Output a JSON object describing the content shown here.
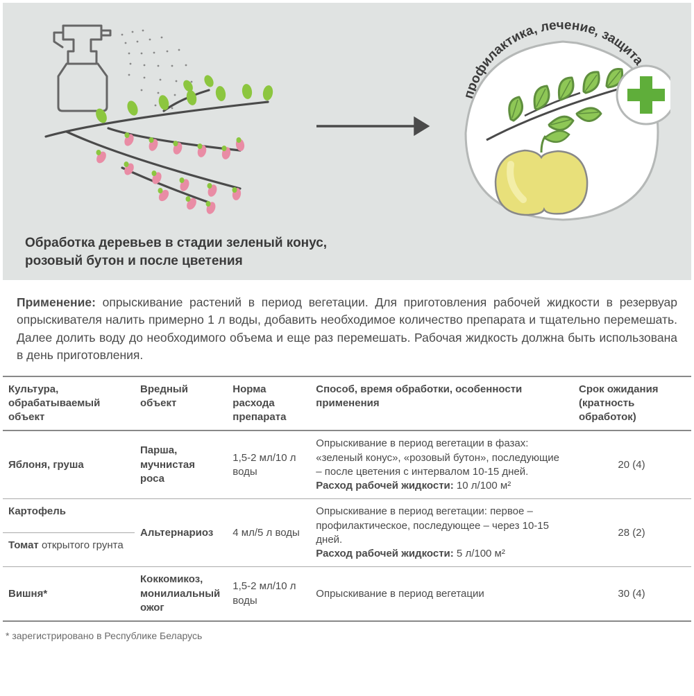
{
  "hero": {
    "caption_line1": "Обработка деревьев в стадии зеленый конус,",
    "caption_line2": "розовый бутон и после цветения",
    "badge_text": "профилактика, лечение, защита",
    "colors": {
      "bg": "#e0e3e2",
      "bud_green": "#8cc63f",
      "bud_pink": "#e98ca5",
      "branch": "#4a4a4a",
      "leaf_outline": "#5f8f3e",
      "leaf_fill": "#8ec756",
      "apple_fill": "#e8e07a",
      "apple_highlight": "#f4f0b0",
      "apple_outline": "#888888",
      "plus": "#5fae3a",
      "badge_circle_stroke": "#b5b8b7",
      "arrow": "#4a4a4a",
      "spray_outline": "#666666"
    }
  },
  "application": {
    "label": "Применение:",
    "text": " опрыскивание растений в период вегетации. Для приготовления рабочей жидкости в резервуар опрыскивателя налить примерно 1 л воды, добавить необходимое количество препарата и тщательно перемешать. Далее долить воду до необходимого объема и еще раз перемешать. Рабочая жидкость должна быть использована в день приготовления."
  },
  "table": {
    "columns": [
      "Культура, обрабатываемый объект",
      "Вредный объект",
      "Норма расхода препарата",
      "Способ, время обработки, особенности применения",
      "Срок ожидания (кратность обработок)"
    ],
    "col_widths": [
      "190px",
      "130px",
      "120px",
      "auto",
      "170px"
    ],
    "rows": [
      {
        "culture": "Яблоня, груша",
        "pest_bold": "Парша, мучнистая роса",
        "dose": "1,5-2 мл/10 л воды",
        "method_lines": [
          "Опрыскивание в период вегетации в фазах: «зеленый конус», «розовый бутон», последующие – после цветения с интервалом 10-15 дней."
        ],
        "method_bold": "Расход рабочей жидкости:",
        "method_bold_after": " 10 л/100 м²",
        "wait": "20 (4)"
      },
      {
        "culture": "Картофель",
        "pest_bold": "Альтернариоз",
        "dose": "4 мл/5 л воды",
        "method_lines": [
          "Опрыскивание в период вегетации: первое – профилактическое, последующее – через 10-15 дней."
        ],
        "method_bold": "Расход рабочей жидкости:",
        "method_bold_after": " 5 л/100 м²",
        "wait": "28 (2)",
        "second_culture_html": "<b>Томат</b> открытого грунта"
      },
      {
        "culture": "Вишня*",
        "pest_bold": "Коккомикоз, монилиальный ожог",
        "dose": "1,5-2 мл/10 л воды",
        "method_lines": [
          "Опрыскивание в период вегетации"
        ],
        "method_bold": "",
        "method_bold_after": "",
        "wait": "30 (4)"
      }
    ]
  },
  "footnote": "* зарегистрировано в Республике Беларусь"
}
